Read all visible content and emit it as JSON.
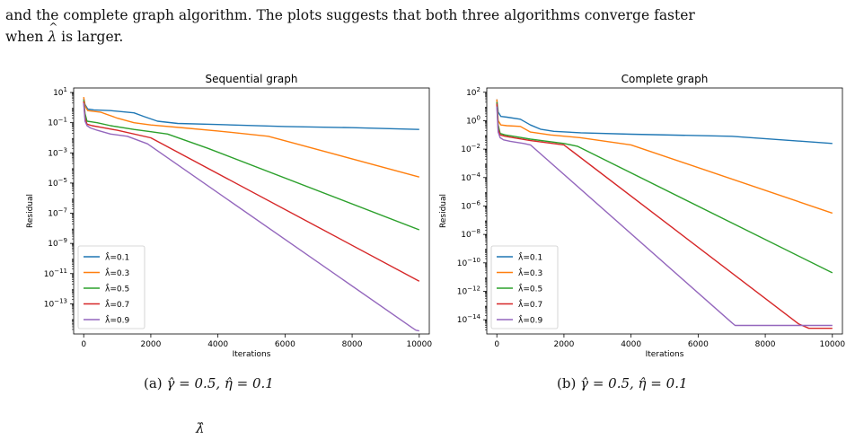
{
  "paper": {
    "body_line1": "and the complete graph algorithm. The plots suggests that both three algorithms converge faster",
    "body_line2_prefix": "when",
    "body_line2_symbol": "λ",
    "body_line2_suffix": "is larger.",
    "caption_a_label": "(a)",
    "caption_a_math": "γ̂ = 0.5,  η̂ = 0.1",
    "caption_b_label": "(b)",
    "caption_b_math": "γ̂ = 0.5,  η̂ = 0.1",
    "bottom_fragment": "λ̂"
  },
  "chart_data": [
    {
      "type": "line",
      "title": "Sequential graph",
      "xlabel": "Iterations",
      "ylabel": "Residual",
      "yscale": "log",
      "xlim": [
        -300,
        10300
      ],
      "ylim_exp": [
        -15,
        1.3
      ],
      "xticks": [
        0,
        2000,
        4000,
        6000,
        8000,
        10000
      ],
      "xtick_labels": [
        "0",
        "2000",
        "4000",
        "6000",
        "8000",
        "10000"
      ],
      "yticks_exp": [
        1,
        -1,
        -3,
        -5,
        -7,
        -9,
        -11,
        -13
      ],
      "legend_position": "lower-left",
      "series": [
        {
          "name": "λ̂=0.1",
          "color": "#1f77b4",
          "x": [
            0,
            40,
            120,
            300,
            800,
            1500,
            1800,
            2200,
            2800,
            4000,
            6000,
            8000,
            10000
          ],
          "log10_y": [
            0.6,
            0.2,
            -0.1,
            -0.15,
            -0.2,
            -0.35,
            -0.6,
            -0.9,
            -1.05,
            -1.12,
            -1.25,
            -1.33,
            -1.45
          ]
        },
        {
          "name": "λ̂=0.3",
          "color": "#ff7f0e",
          "x": [
            0,
            40,
            120,
            300,
            500,
            1000,
            1500,
            2000,
            3000,
            4000,
            5500,
            6000,
            10000
          ],
          "log10_y": [
            0.7,
            0.1,
            -0.2,
            -0.25,
            -0.3,
            -0.7,
            -1.0,
            -1.15,
            -1.35,
            -1.55,
            -1.9,
            -2.2,
            -4.6
          ]
        },
        {
          "name": "λ̂=0.5",
          "color": "#2ca02c",
          "x": [
            0,
            40,
            100,
            250,
            400,
            800,
            1500,
            2000,
            2500,
            3700,
            10000
          ],
          "log10_y": [
            0.5,
            -0.4,
            -0.9,
            -0.95,
            -1.0,
            -1.2,
            -1.45,
            -1.6,
            -1.75,
            -2.7,
            -8.1
          ]
        },
        {
          "name": "λ̂=0.7",
          "color": "#d62728",
          "x": [
            0,
            40,
            100,
            250,
            500,
            1000,
            2000,
            10000
          ],
          "log10_y": [
            0.4,
            -0.7,
            -1.1,
            -1.2,
            -1.3,
            -1.5,
            -2.0,
            -11.5
          ]
        },
        {
          "name": "λ̂=0.9",
          "color": "#9467bd",
          "x": [
            0,
            40,
            100,
            200,
            400,
            800,
            1300,
            1900,
            9800,
            9900,
            10000
          ],
          "log10_y": [
            0.3,
            -0.9,
            -1.2,
            -1.35,
            -1.5,
            -1.75,
            -1.9,
            -2.4,
            -14.6,
            -14.75,
            -14.8
          ]
        }
      ]
    },
    {
      "type": "line",
      "title": "Complete graph",
      "xlabel": "Iterations",
      "ylabel": "Residual",
      "yscale": "log",
      "xlim": [
        -300,
        10300
      ],
      "ylim_exp": [
        -15,
        2.3
      ],
      "xticks": [
        0,
        2000,
        4000,
        6000,
        8000,
        10000
      ],
      "xtick_labels": [
        "0",
        "2000",
        "4000",
        "6000",
        "8000",
        "10000"
      ],
      "yticks_exp": [
        2,
        0,
        -2,
        -4,
        -6,
        -8,
        -10,
        -12,
        -14
      ],
      "legend_position": "lower-left",
      "series": [
        {
          "name": "λ̂=0.1",
          "color": "#1f77b4",
          "x": [
            0,
            40,
            120,
            300,
            700,
            1000,
            1300,
            1700,
            2500,
            4000,
            7000,
            10000
          ],
          "log10_y": [
            1.5,
            0.6,
            0.3,
            0.25,
            0.1,
            -0.3,
            -0.6,
            -0.75,
            -0.85,
            -0.95,
            -1.1,
            -1.6
          ]
        },
        {
          "name": "λ̂=0.3",
          "color": "#ff7f0e",
          "x": [
            0,
            40,
            120,
            300,
            700,
            1000,
            1600,
            2500,
            4000,
            10000
          ],
          "log10_y": [
            1.5,
            0.0,
            -0.3,
            -0.35,
            -0.4,
            -0.8,
            -1.0,
            -1.2,
            -1.7,
            -6.5
          ]
        },
        {
          "name": "λ̂=0.5",
          "color": "#2ca02c",
          "x": [
            0,
            40,
            100,
            250,
            500,
            1000,
            2000,
            2400,
            3000,
            10000
          ],
          "log10_y": [
            1.3,
            -0.3,
            -0.9,
            -1.0,
            -1.1,
            -1.3,
            -1.6,
            -1.8,
            -2.5,
            -10.7
          ]
        },
        {
          "name": "λ̂=0.7",
          "color": "#d62728",
          "x": [
            0,
            40,
            100,
            250,
            500,
            1000,
            2000,
            9000,
            9300,
            10000
          ],
          "log10_y": [
            1.2,
            -0.6,
            -1.0,
            -1.1,
            -1.2,
            -1.4,
            -1.7,
            -14.3,
            -14.6,
            -14.6
          ]
        },
        {
          "name": "λ̂=0.9",
          "color": "#9467bd",
          "x": [
            0,
            40,
            100,
            200,
            400,
            800,
            1000,
            7000,
            7100,
            10000
          ],
          "log10_y": [
            1.0,
            -0.8,
            -1.2,
            -1.35,
            -1.45,
            -1.6,
            -1.7,
            -14.2,
            -14.4,
            -14.4
          ]
        }
      ]
    }
  ]
}
